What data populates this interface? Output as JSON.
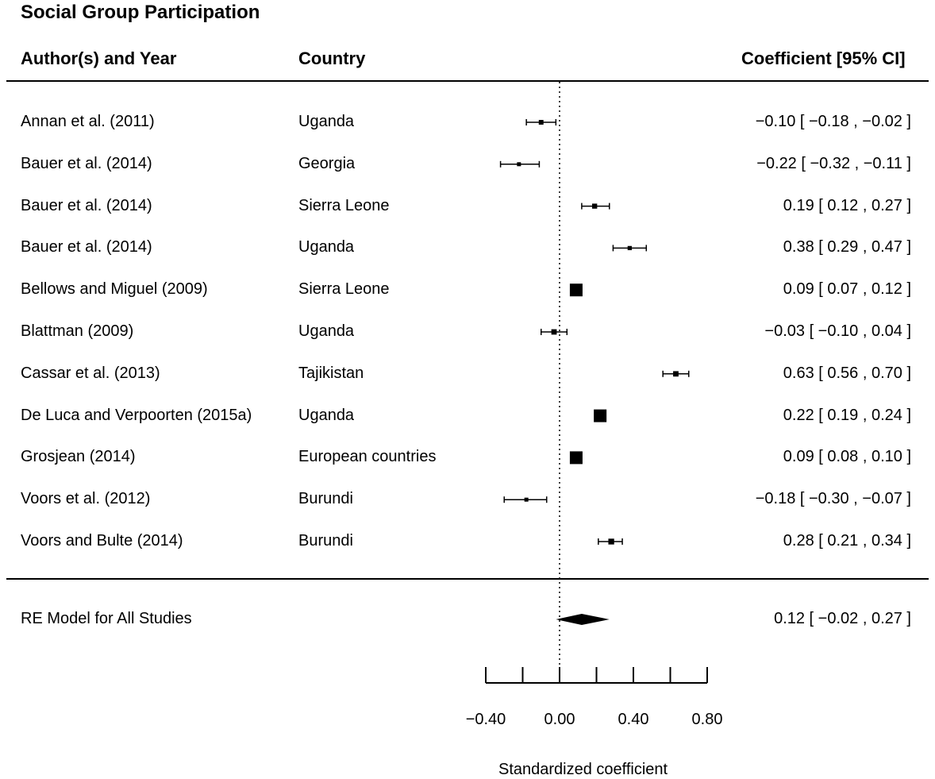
{
  "chart_data": {
    "type": "forest",
    "title": "Social Group Participation",
    "columns": {
      "author": "Author(s) and Year",
      "country": "Country",
      "estimate": "Coefficient [95% CI]"
    },
    "studies": [
      {
        "author": "Annan et al. (2011)",
        "country": "Uganda",
        "estimate": -0.1,
        "lower": -0.18,
        "upper": -0.02,
        "ci_text": "−0.10 [ −0.18 , −0.02 ]"
      },
      {
        "author": "Bauer et al. (2014)",
        "country": "Georgia",
        "estimate": -0.22,
        "lower": -0.32,
        "upper": -0.11,
        "ci_text": "−0.22 [ −0.32 , −0.11 ]"
      },
      {
        "author": "Bauer et al. (2014)",
        "country": "Sierra Leone",
        "estimate": 0.19,
        "lower": 0.12,
        "upper": 0.27,
        "ci_text": "0.19 [  0.12 ,  0.27 ]"
      },
      {
        "author": "Bauer et al. (2014)",
        "country": "Uganda",
        "estimate": 0.38,
        "lower": 0.29,
        "upper": 0.47,
        "ci_text": "0.38 [  0.29 ,  0.47 ]"
      },
      {
        "author": "Bellows and Miguel (2009)",
        "country": "Sierra Leone",
        "estimate": 0.09,
        "lower": 0.07,
        "upper": 0.12,
        "ci_text": "0.09 [  0.07 ,  0.12 ]"
      },
      {
        "author": "Blattman (2009)",
        "country": "Uganda",
        "estimate": -0.03,
        "lower": -0.1,
        "upper": 0.04,
        "ci_text": "−0.03 [ −0.10 ,  0.04 ]"
      },
      {
        "author": "Cassar et al. (2013)",
        "country": "Tajikistan",
        "estimate": 0.63,
        "lower": 0.56,
        "upper": 0.7,
        "ci_text": "0.63 [  0.56 ,  0.70 ]"
      },
      {
        "author": "De Luca and Verpoorten (2015a)",
        "country": "Uganda",
        "estimate": 0.22,
        "lower": 0.19,
        "upper": 0.24,
        "ci_text": "0.22 [  0.19 ,  0.24 ]"
      },
      {
        "author": "Grosjean (2014)",
        "country": "European countries",
        "estimate": 0.09,
        "lower": 0.08,
        "upper": 0.1,
        "ci_text": "0.09 [  0.08 ,  0.10 ]"
      },
      {
        "author": "Voors et al. (2012)",
        "country": "Burundi",
        "estimate": -0.18,
        "lower": -0.3,
        "upper": -0.07,
        "ci_text": "−0.18 [ −0.30 , −0.07 ]"
      },
      {
        "author": "Voors and Bulte (2014)",
        "country": "Burundi",
        "estimate": 0.28,
        "lower": 0.21,
        "upper": 0.34,
        "ci_text": "0.28 [  0.21 ,  0.34 ]"
      }
    ],
    "summary": {
      "label": "RE Model for All Studies",
      "estimate": 0.12,
      "lower": -0.02,
      "upper": 0.27,
      "ci_text": "0.12 [ −0.02 ,  0.27 ]"
    },
    "xaxis": {
      "label": "Standardized coefficient",
      "range": [
        -0.4,
        0.8
      ],
      "ticks": [
        -0.4,
        -0.2,
        0.0,
        0.2,
        0.4,
        0.6,
        0.8
      ],
      "tick_labels": [
        "−0.40",
        "0.00",
        "0.40",
        "0.80"
      ],
      "labeled_ticks": [
        -0.4,
        0.0,
        0.4,
        0.8
      ]
    },
    "reference_line": 0.0
  }
}
